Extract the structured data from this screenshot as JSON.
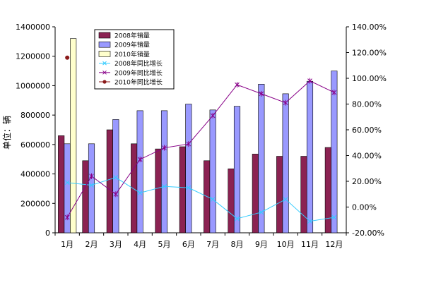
{
  "chart_data": {
    "type": "bar",
    "title": "",
    "xlabel": "",
    "ylabel": "单位：辆",
    "categories": [
      "1月",
      "2月",
      "3月",
      "4月",
      "5月",
      "6月",
      "7月",
      "8月",
      "9月",
      "10月",
      "11月",
      "12月"
    ],
    "ylim": [
      0,
      1400000
    ],
    "y_ticks": [
      "0",
      "200000",
      "400000",
      "600000",
      "800000",
      "1000000",
      "1200000",
      "1400000"
    ],
    "y2lim": [
      -20,
      140
    ],
    "y2_ticks": [
      "-20.00%",
      "0.00%",
      "20.00%",
      "40.00%",
      "60.00%",
      "80.00%",
      "100.00%",
      "120.00%",
      "140.00%"
    ],
    "grid": false,
    "legend_position": "top-left",
    "bar_series": [
      {
        "name": "2008年销量",
        "color": "#8B2252",
        "values": [
          660000,
          490000,
          700000,
          605000,
          570000,
          585000,
          490000,
          435000,
          535000,
          520000,
          520000,
          580000
        ]
      },
      {
        "name": "2009年销量",
        "color": "#9999FF",
        "values": [
          605000,
          605000,
          770000,
          830000,
          830000,
          875000,
          835000,
          860000,
          1010000,
          945000,
          1030000,
          1100000
        ]
      },
      {
        "name": "2010年销量",
        "color": "#FFFFCC",
        "values": [
          1320000,
          null,
          null,
          null,
          null,
          null,
          null,
          null,
          null,
          null,
          null,
          null
        ]
      }
    ],
    "line_series": [
      {
        "name": "2008年同比增长",
        "color": "#33CCFF",
        "axis": "right",
        "values": [
          19,
          17,
          23,
          11,
          16,
          15,
          6,
          -9,
          -4,
          6,
          -11,
          -8
        ]
      },
      {
        "name": "2009年同比增长",
        "color": "#880088",
        "axis": "right",
        "values": [
          -8,
          24,
          10,
          37,
          46,
          49,
          71,
          95,
          88,
          81,
          98,
          89
        ]
      },
      {
        "name": "2010年同比增长",
        "color": "#8B1A1A",
        "axis": "right",
        "values": [
          116,
          null,
          null,
          null,
          null,
          null,
          null,
          null,
          null,
          null,
          null,
          null
        ]
      }
    ]
  }
}
